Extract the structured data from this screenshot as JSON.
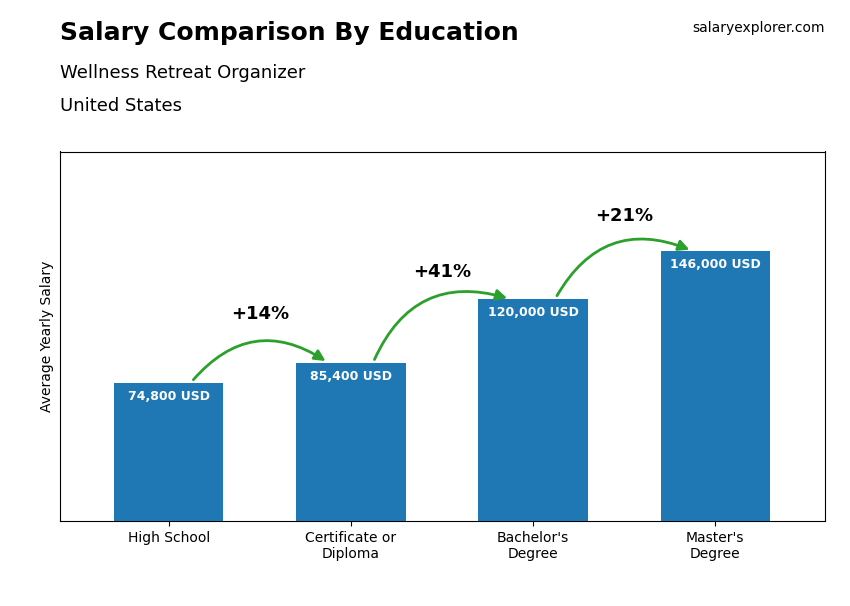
{
  "chart_data": {
    "type": "bar",
    "title": "Salary Comparison By Education",
    "subtitle": [
      "Wellness Retreat Organizer",
      "United States"
    ],
    "ylabel": "Average Yearly Salary",
    "categories": [
      "High School",
      "Certificate or\nDiploma",
      "Bachelor's\nDegree",
      "Master's\nDegree"
    ],
    "values": [
      74800,
      85400,
      120000,
      146000
    ],
    "value_labels": [
      "74,800 USD",
      "85,400 USD",
      "120,000 USD",
      "146,000 USD"
    ],
    "data_labels": true,
    "ylim": [
      0,
      200000
    ],
    "yticks": [],
    "tick_labels": "x",
    "grid": false,
    "annotations": [
      {
        "text": "+14%",
        "from": "High School",
        "to": "Certificate or\nDiploma"
      },
      {
        "text": "+41%",
        "from": "Certificate or\nDiploma",
        "to": "Bachelor's\nDegree"
      },
      {
        "text": "+21%",
        "from": "Bachelor's\nDegree",
        "to": "Master's\nDegree"
      },
      {
        "text": "salaryexplorer.com"
      }
    ]
  }
}
